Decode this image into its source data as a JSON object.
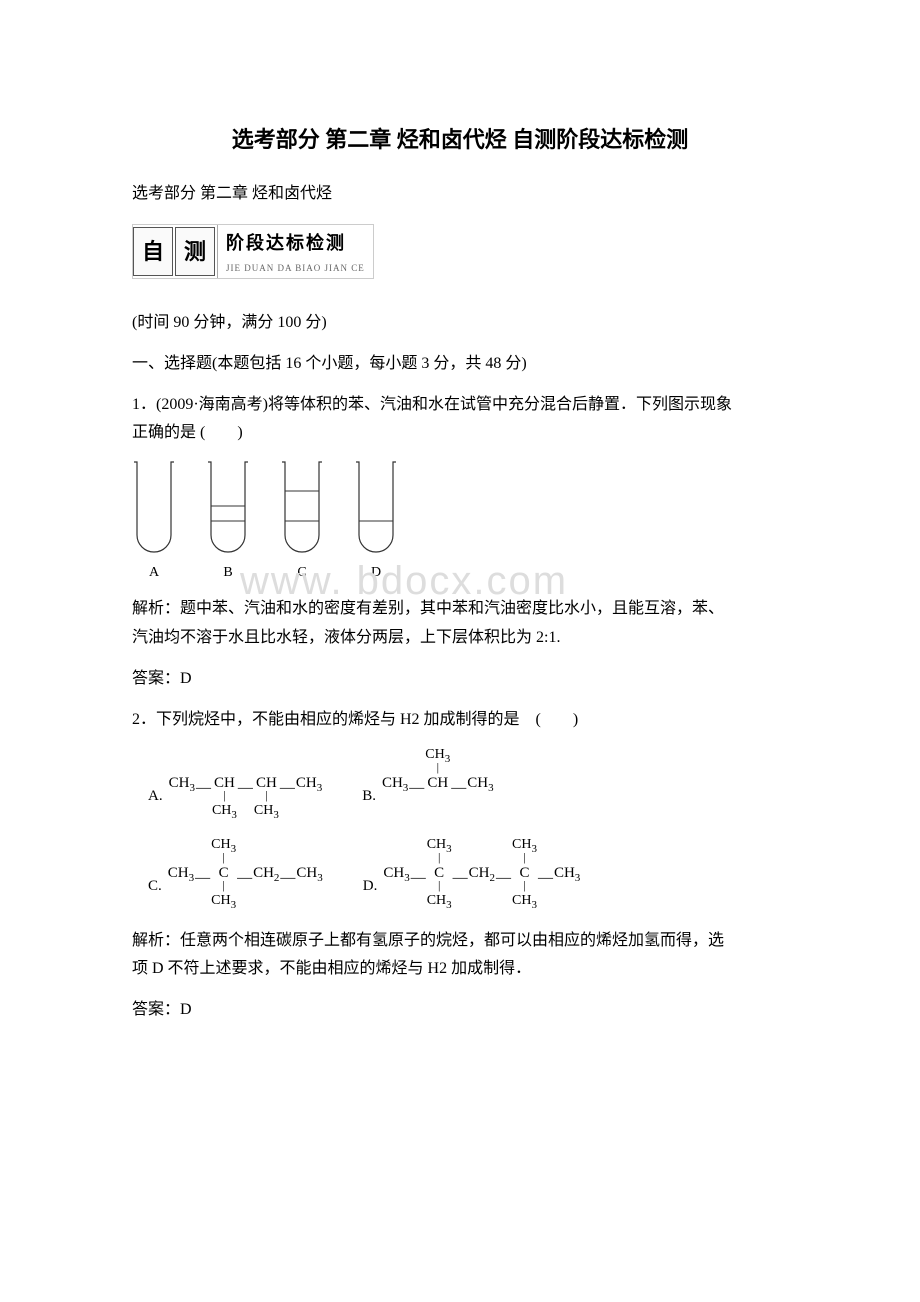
{
  "title": "选考部分 第二章 烃和卤代烃 自测阶段达标检测",
  "subtitle": "选考部分 第二章 烃和卤代烃",
  "badge": {
    "char1": "自",
    "char2": "测",
    "script": "阶段达标检测",
    "pinyin": "JIE DUAN DA BIAO JIAN CE"
  },
  "timing": "(时间 90 分钟，满分 100 分)",
  "section1_header": "一、选择题(本题包括 16 个小题，每小题 3 分，共 48 分)",
  "q1_stem_line1": "1．(2009·海南高考)将等体积的苯、汽油和水在试管中充分混合后静置．下列图示现象",
  "q1_stem_line2": "正确的是 (　　)",
  "q1_tubes": {
    "labels": [
      "A",
      "B",
      "C",
      "D"
    ],
    "layers": [
      [],
      [
        0.5,
        0.67
      ],
      [
        0.33,
        0.67
      ],
      [
        0.67
      ]
    ],
    "width": 34,
    "height": 90,
    "stroke": "#333333"
  },
  "watermark": "www. bdocx.com",
  "q1_analysis_l1": "解析：题中苯、汽油和水的密度有差别，其中苯和汽油密度比水小，且能互溶，苯、",
  "q1_analysis_l2": "汽油均不溶于水且比水轻，液体分两层，上下层体积比为 2:1.",
  "q1_answer": "答案：D",
  "q2_stem": "2．下列烷烃中，不能由相应的烯烃与 H2 加成制得的是　(　　)",
  "q2_options": {
    "A": "CH₃—CH(CH₃)—CH(CH₃)—CH₃",
    "B": "CH₃—CH(CH₃)—CH₃",
    "C": "CH₃—C(CH₃)₂—CH₂—CH₃",
    "D": "CH₃—C(CH₃)₂—CH₂—C(CH₃)₂—CH₃"
  },
  "q2_analysis_l1": "解析：任意两个相连碳原子上都有氢原子的烷烃，都可以由相应的烯烃加氢而得，选",
  "q2_analysis_l2": "项 D 不符上述要求，不能由相应的烯烃与 H2 加成制得．",
  "q2_answer": "答案：D",
  "colors": {
    "text": "#000000",
    "background": "#ffffff",
    "watermark": "#dddddd",
    "stroke": "#333333"
  }
}
